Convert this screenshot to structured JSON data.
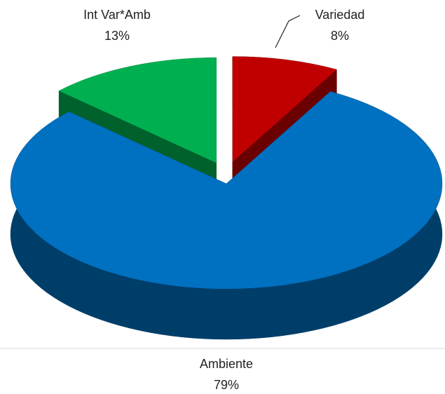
{
  "chart_data": {
    "type": "pie",
    "categories": [
      "Variedad",
      "Ambiente",
      "Int Var*Amb"
    ],
    "values": [
      8,
      79,
      13
    ],
    "value_labels": [
      "8%",
      "79%",
      "13%"
    ],
    "colors": [
      "#c00000",
      "#0070c0",
      "#00b050"
    ]
  }
}
